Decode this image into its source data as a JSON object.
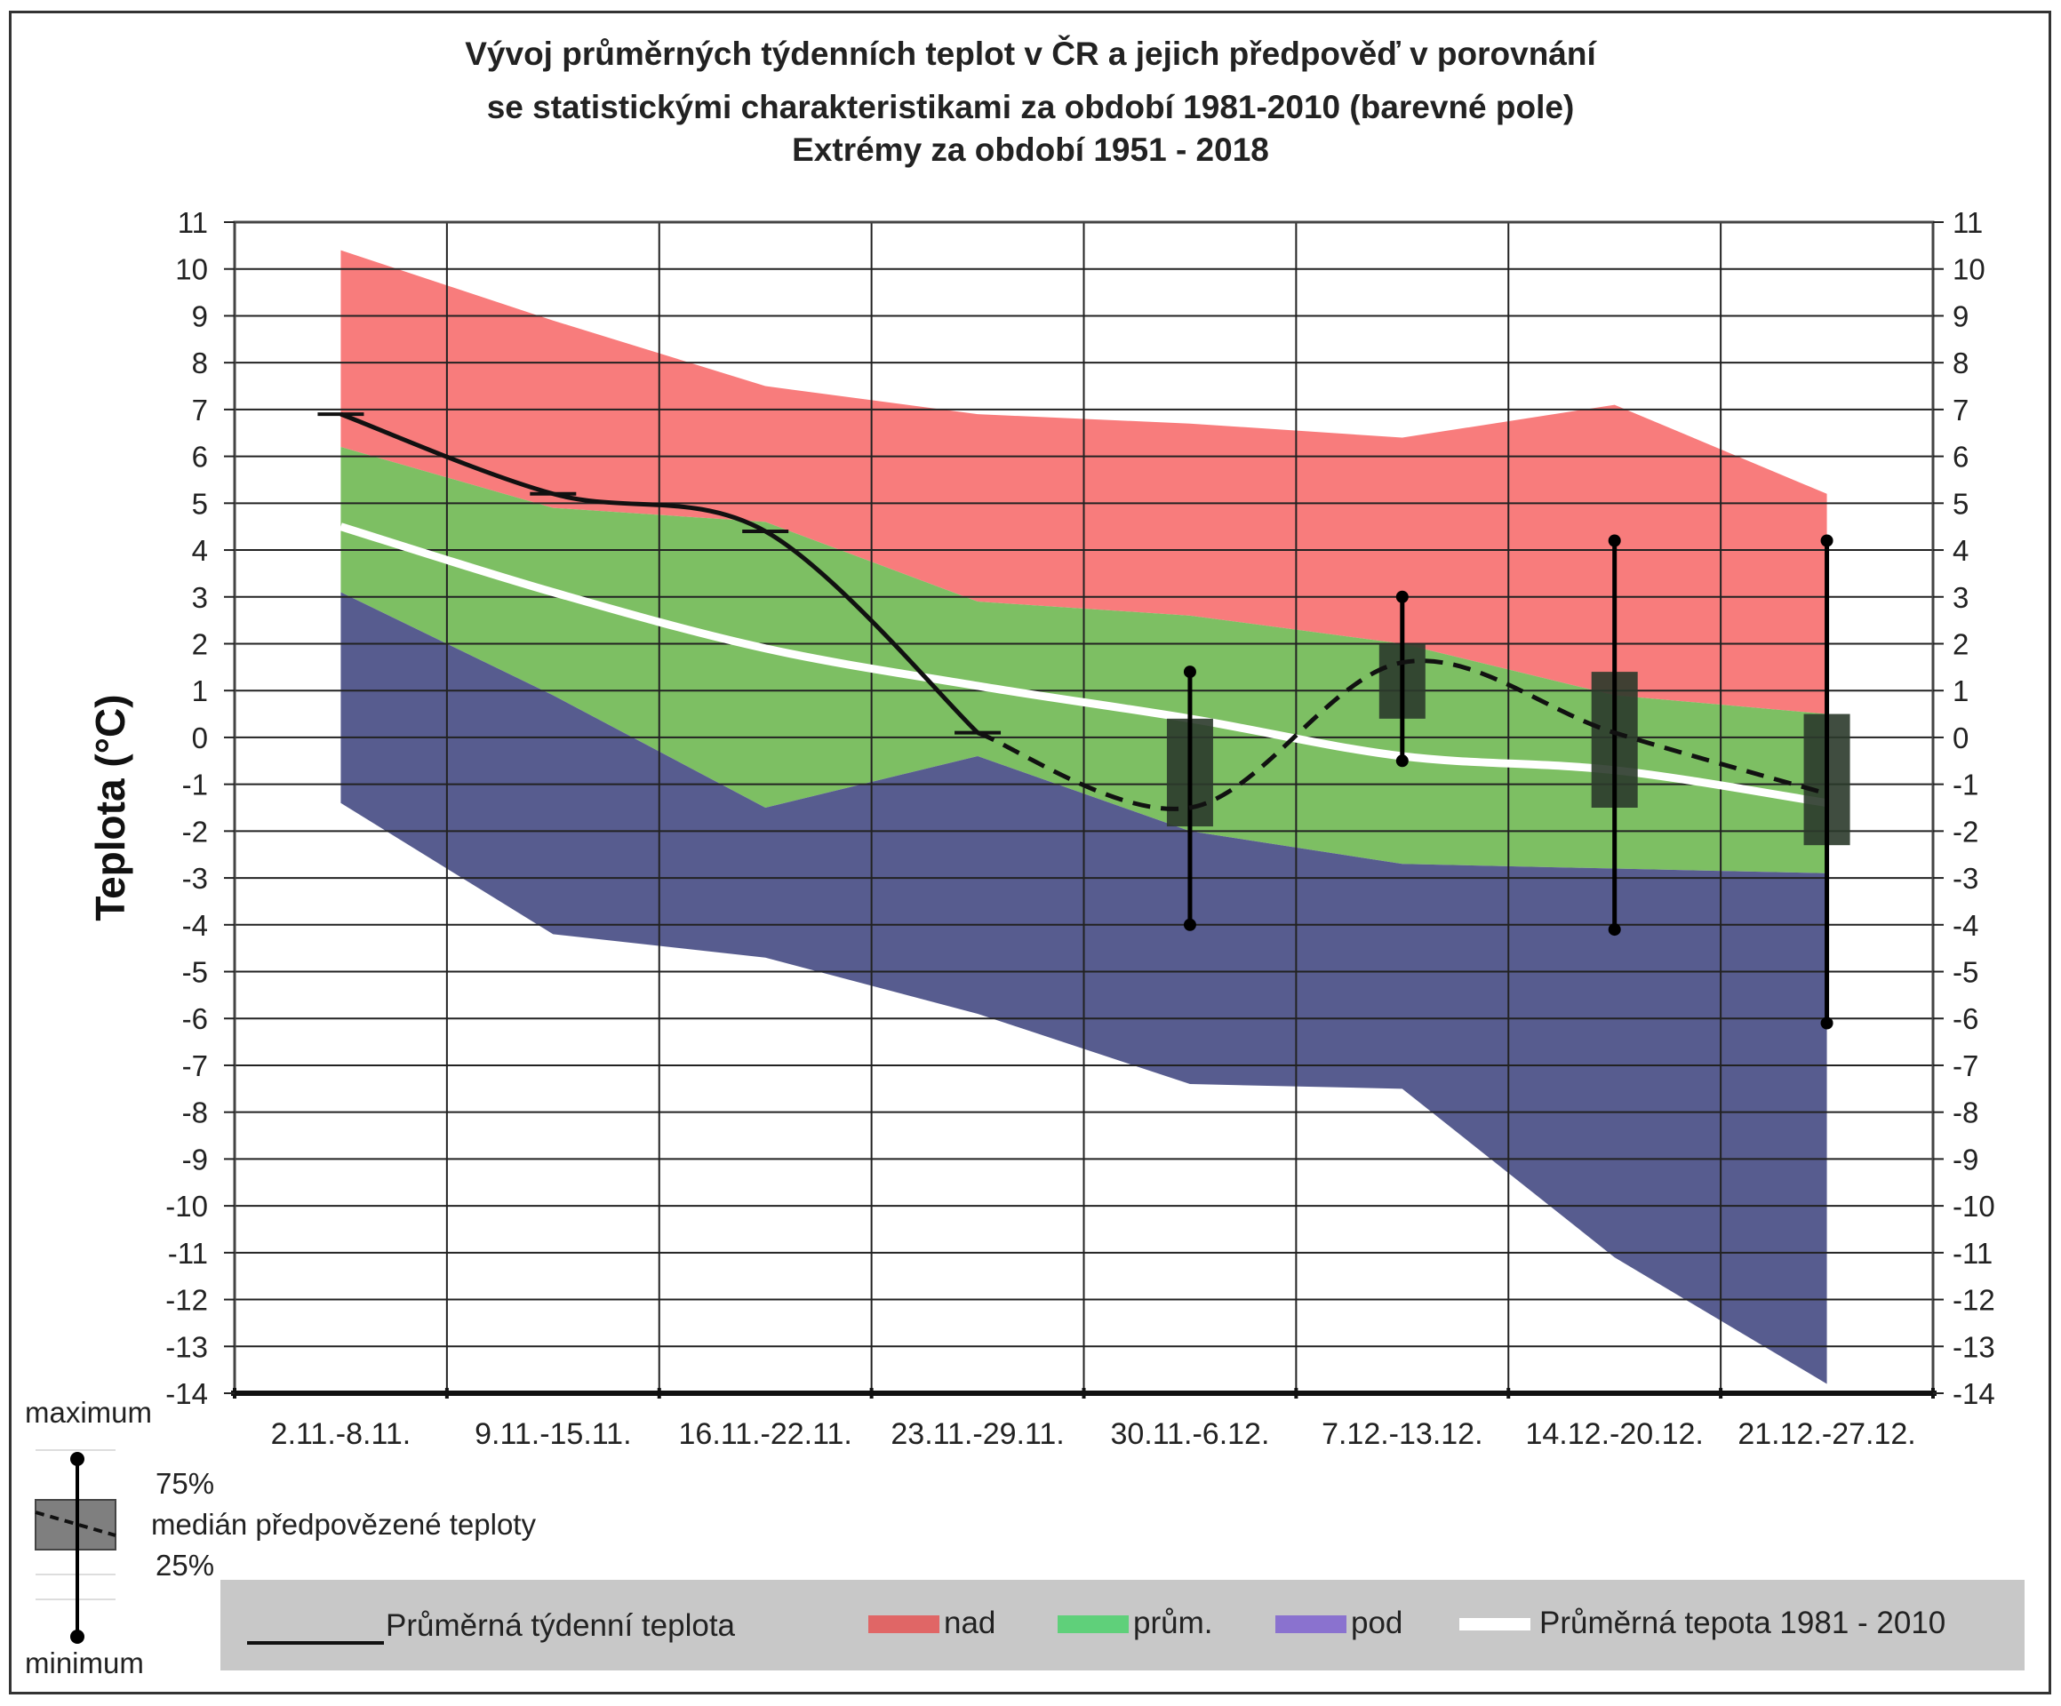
{
  "chart_data": {
    "type": "area",
    "title_lines": [
      "Vývoj průměrných týdenních teplot v ČR a jejich předpověď v porovnání",
      "se statistickými charakteristikami za období 1981-2010 (barevné pole)",
      "Extrémy za období 1951 - 2018"
    ],
    "ylabel": "Teplota (°C)",
    "xlabel": "",
    "ylim": [
      -14,
      11
    ],
    "yticks": [
      11,
      10,
      9,
      8,
      7,
      6,
      5,
      4,
      3,
      2,
      1,
      0,
      -1,
      -2,
      -3,
      -4,
      -5,
      -6,
      -7,
      -8,
      -9,
      -10,
      -11,
      -12,
      -13,
      -14
    ],
    "grid": true,
    "categories": [
      "2.11.-8.11.",
      "9.11.-15.11.",
      "16.11.-22.11.",
      "23.11.-29.11.",
      "30.11.-6.12.",
      "7.12.-13.12.",
      "14.12.-20.12.",
      "21.12.-27.12."
    ],
    "bands": {
      "max": [
        10.4,
        8.9,
        7.5,
        6.9,
        6.7,
        6.4,
        7.1,
        5.2
      ],
      "upper": [
        6.2,
        4.9,
        4.6,
        2.9,
        2.6,
        2.0,
        0.9,
        0.5
      ],
      "lower": [
        3.1,
        0.9,
        -1.5,
        -0.4,
        -2.0,
        -2.7,
        -2.8,
        -2.9
      ],
      "min": [
        -1.4,
        -4.2,
        -4.7,
        -5.9,
        -7.4,
        -7.5,
        -11.1,
        -13.8
      ]
    },
    "band_colors": {
      "nad": "#f87c7c",
      "prum": "#7dbf63",
      "pod": "#575c8f"
    },
    "normal_1981_2010": [
      4.5,
      3.1,
      1.9,
      1.1,
      0.4,
      -0.4,
      -0.7,
      -1.4
    ],
    "observed_weekly": [
      6.9,
      5.2,
      4.4,
      0.1
    ],
    "forecast_median": [
      0.1,
      -1.5,
      1.6,
      0.1,
      -1.2
    ],
    "forecast_boxes": [
      {
        "category": "30.11.-6.12.",
        "min": -4.0,
        "q25": -1.9,
        "median": -1.5,
        "q75": 0.4,
        "max": 1.4
      },
      {
        "category": "7.12.-13.12.",
        "min": -0.5,
        "q25": 0.4,
        "median": 1.6,
        "q75": 2.0,
        "max": 3.0
      },
      {
        "category": "14.12.-20.12.",
        "min": -4.1,
        "q25": -1.5,
        "median": 0.1,
        "q75": 1.4,
        "max": 4.2
      },
      {
        "category": "21.12.-27.12.",
        "min": -6.1,
        "q25": -2.3,
        "median": -1.2,
        "q75": 0.5,
        "max": 4.2
      }
    ],
    "box_legend": {
      "maximum": "maximum",
      "q75": "75%",
      "median": "medián předpovězené teploty",
      "q25": "25%",
      "minimum": "minimum"
    },
    "legend": {
      "observed": "Průměrná týdenní teplota",
      "nad": "nad",
      "prum": "prům.",
      "pod": "pod",
      "normal": "Průměrná tepota 1981 - 2010"
    },
    "legend_colors": {
      "nad": "#e06666",
      "prum": "#5fd07a",
      "pod": "#8a72cf"
    }
  }
}
